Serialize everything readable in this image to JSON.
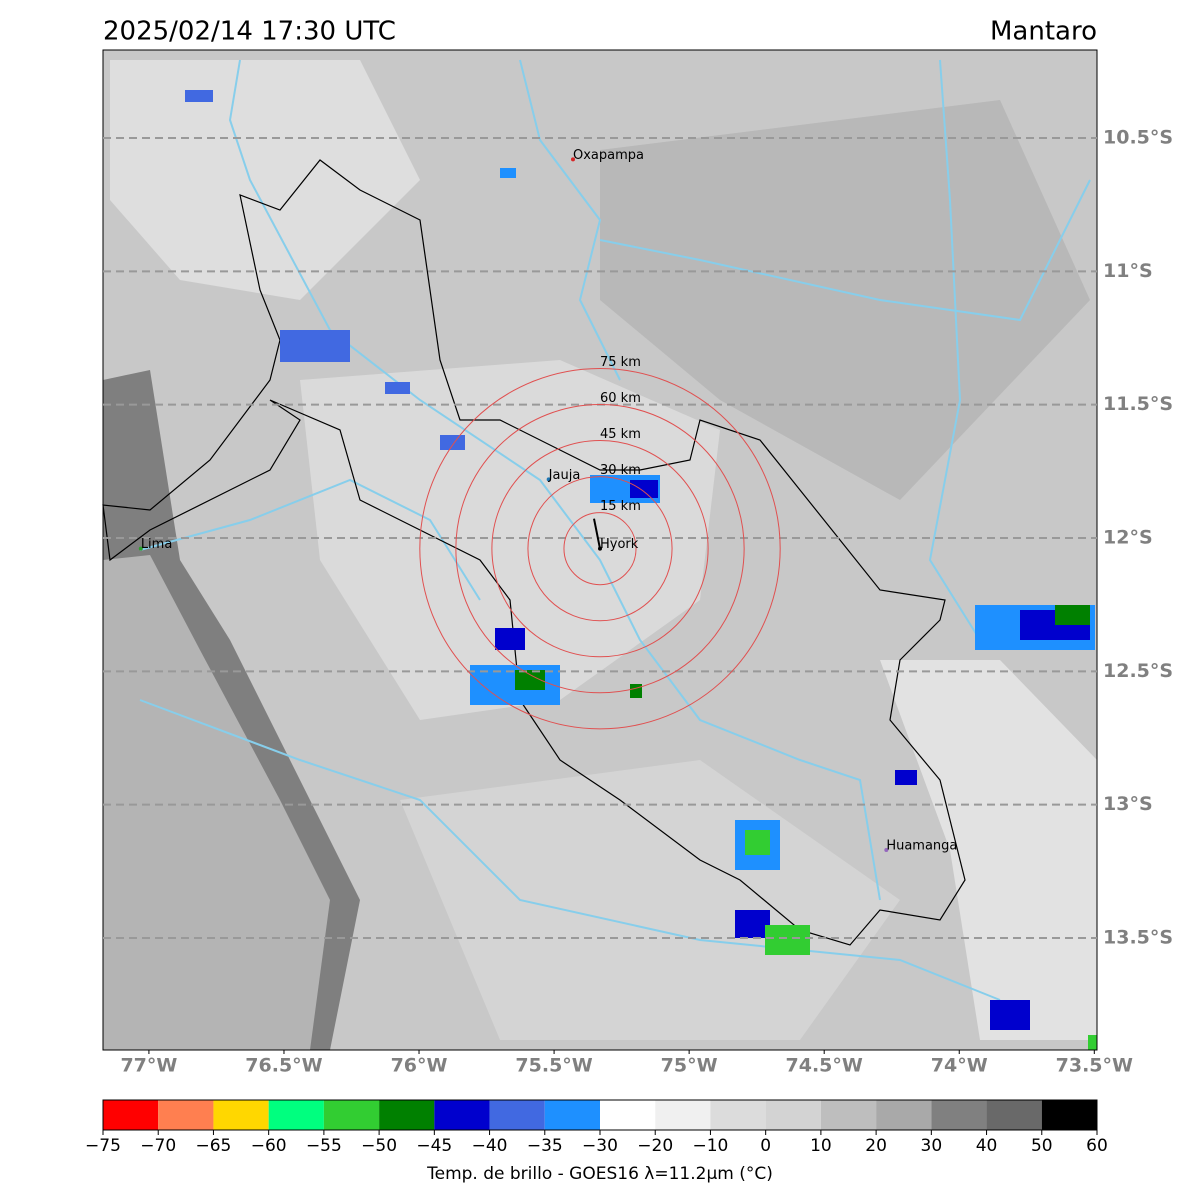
{
  "header": {
    "title": "2025/02/14 17:30 UTC",
    "region": "Mantaro"
  },
  "map": {
    "xlim": [
      -77.17,
      -73.49
    ],
    "ylim": [
      -13.92,
      -10.17
    ],
    "lon_ticks": [
      {
        "value": -77,
        "label": "77°W"
      },
      {
        "value": -76.5,
        "label": "76.5°W"
      },
      {
        "value": -76,
        "label": "76°W"
      },
      {
        "value": -75.5,
        "label": "75.5°W"
      },
      {
        "value": -75,
        "label": "75°W"
      },
      {
        "value": -74.5,
        "label": "74.5°W"
      },
      {
        "value": -74,
        "label": "74°W"
      },
      {
        "value": -73.5,
        "label": "73.5°W"
      }
    ],
    "lat_ticks": [
      {
        "value": -10.5,
        "label": "10.5°S"
      },
      {
        "value": -11,
        "label": "11°S"
      },
      {
        "value": -11.5,
        "label": "11.5°S"
      },
      {
        "value": -12,
        "label": "12°S"
      },
      {
        "value": -12.5,
        "label": "12.5°S"
      },
      {
        "value": -13,
        "label": "13°S"
      },
      {
        "value": -13.5,
        "label": "13.5°S"
      }
    ],
    "cities": [
      {
        "name": "Oxapampa",
        "lon": -75.43,
        "lat": -10.58,
        "color": "#d62728"
      },
      {
        "name": "Jauja",
        "lon": -75.52,
        "lat": -11.78,
        "color": "#1f77b4"
      },
      {
        "name": "Lima",
        "lon": -77.03,
        "lat": -12.04,
        "color": "#2ca02c"
      },
      {
        "name": "Hyork",
        "lon": -75.33,
        "lat": -12.04,
        "color": "#000000"
      },
      {
        "name": "Huamanga",
        "lon": -74.27,
        "lat": -13.17,
        "color": "#9467bd"
      }
    ],
    "rings": {
      "center_lon": -75.33,
      "center_lat": -12.04,
      "radii": [
        15,
        30,
        45,
        60,
        75
      ],
      "value_labels": [
        "15 km",
        "30 km",
        "45 km",
        "60 km",
        "75 km"
      ],
      "color": "#e05050"
    }
  },
  "colorbar": {
    "label": "Temp. de brillo - GOES16 λ=11.2μm (°C)",
    "bounds": [
      {
        "value": -75,
        "label": "−75"
      },
      {
        "value": -70,
        "label": "−70"
      },
      {
        "value": -65,
        "label": "−65"
      },
      {
        "value": -60,
        "label": "−60"
      },
      {
        "value": -55,
        "label": "−55"
      },
      {
        "value": -50,
        "label": "−50"
      },
      {
        "value": -45,
        "label": "−45"
      },
      {
        "value": -40,
        "label": "−40"
      },
      {
        "value": -35,
        "label": "−35"
      },
      {
        "value": -30,
        "label": "−30"
      },
      {
        "value": -20,
        "label": "−20"
      },
      {
        "value": -10,
        "label": "−10"
      },
      0,
      10,
      20,
      30,
      40,
      50,
      60
    ],
    "colors": [
      "#ff0000",
      "#ff7f50",
      "#ffd700",
      "#00ff7f",
      "#32cd32",
      "#008000",
      "#0000cd",
      "#4169e1",
      "#1e90ff",
      "#ffffff",
      "#f0f0f0",
      "#dcdcdc",
      "#d3d3d3",
      "#bebebe",
      "#a9a9a9",
      "#808080",
      "#696969",
      "#000000"
    ]
  }
}
